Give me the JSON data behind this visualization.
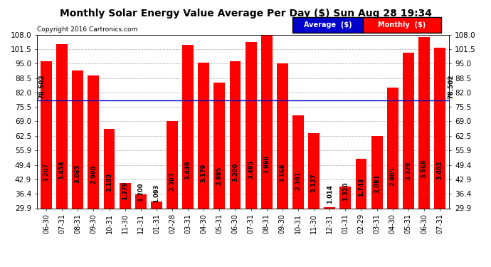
{
  "title": "Monthly Solar Energy Value Average Per Day ($) Sun Aug 28 19:34",
  "copyright": "Copyright 2016 Cartronics.com",
  "categories": [
    "06-30",
    "07-31",
    "08-31",
    "09-30",
    "10-31",
    "11-30",
    "12-31",
    "01-31",
    "02-28",
    "03-31",
    "04-30",
    "05-31",
    "06-30",
    "07-31",
    "08-31",
    "09-30",
    "10-31",
    "11-30",
    "12-31",
    "01-31",
    "02-29",
    "03-31",
    "04-30",
    "05-31",
    "06-30",
    "07-31"
  ],
  "values": [
    3.207,
    3.458,
    3.065,
    2.99,
    2.192,
    1.379,
    1.2,
    1.093,
    2.303,
    3.449,
    3.179,
    2.885,
    3.2,
    3.485,
    3.998,
    3.168,
    2.391,
    2.127,
    1.014,
    1.32,
    1.743,
    2.081,
    2.805,
    3.329,
    3.568,
    3.402
  ],
  "bar_color": "#ff0000",
  "average_value": 78.502,
  "ylim_min": 29.9,
  "ylim_max": 108.0,
  "yticks": [
    29.9,
    36.4,
    42.9,
    49.4,
    55.9,
    62.5,
    69.0,
    75.5,
    82.0,
    88.5,
    95.0,
    101.5,
    108.0
  ],
  "average_line_color": "#0000cc",
  "grid_color": "#bbbbbb",
  "background_color": "#ffffff",
  "legend_avg_bg": "#0000cc",
  "legend_monthly_bg": "#ff0000",
  "legend_avg_text": "Average  ($)",
  "legend_monthly_text": "Monthly  ($)",
  "title_fontsize": 10,
  "copyright_fontsize": 6.5,
  "tick_fontsize": 7.5,
  "bar_label_fontsize": 6,
  "avg_label_fontsize": 6.5
}
